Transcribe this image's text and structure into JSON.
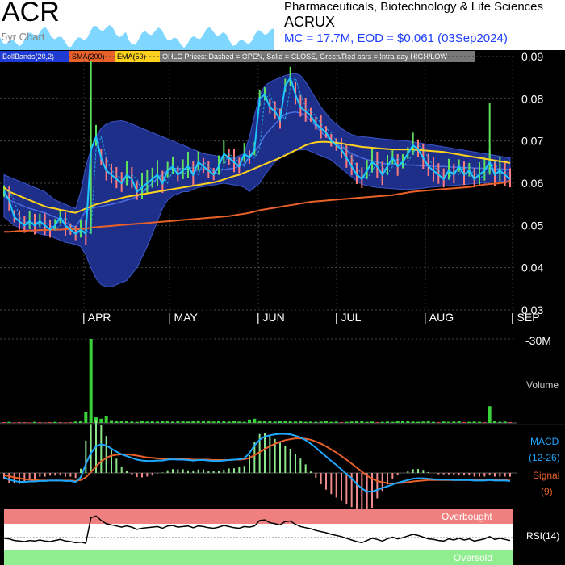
{
  "header": {
    "ticker": "ACR",
    "chart_label": "5yr Chart",
    "sector": "Pharmaceuticals, Biotechnology & Life Sciences",
    "company": "ACRUX",
    "mc_line": "MC = 17.7M, EOD = $0.061 (03Sep2024)"
  },
  "legend": {
    "bollbands": "BollBands(20,2)",
    "sma": "SMA(200)",
    "ema": "EMA(50)",
    "ohlc": "OHLC Prices: Dashed = OPEN, Solid = CLOSE, Green/Red bars = Intra-day HIGH/LOW"
  },
  "colors": {
    "price": "#1ec8ff",
    "bollinger_fill": "#1e2f8a",
    "sma": "#e8602a",
    "ema": "#ffd21e",
    "volume": "#3ad23a",
    "macd": "#1ea8ff",
    "signal": "#e8602a",
    "overbought": "#f08080",
    "oversold": "#90ee90"
  },
  "chart_data": {
    "type": "line",
    "price_axis": {
      "ylim": [
        0.03,
        0.09
      ],
      "ticks": [
        "0.09",
        "0.08",
        "0.07",
        "0.06",
        "0.05",
        "0.04",
        "0.03"
      ]
    },
    "x_labels": [
      "| APR",
      "| MAY",
      "| JUN",
      "| JUL",
      "| AUG",
      "| SEP"
    ],
    "series": [
      {
        "name": "Close",
        "values": [
          0.058,
          0.056,
          0.052,
          0.051,
          0.05,
          0.051,
          0.05,
          0.051,
          0.05,
          0.049,
          0.05,
          0.052,
          0.05,
          0.049,
          0.048,
          0.049,
          0.048,
          0.068,
          0.071,
          0.066,
          0.063,
          0.062,
          0.061,
          0.06,
          0.062,
          0.061,
          0.058,
          0.059,
          0.06,
          0.061,
          0.062,
          0.06,
          0.063,
          0.064,
          0.062,
          0.063,
          0.064,
          0.062,
          0.065,
          0.064,
          0.063,
          0.062,
          0.064,
          0.067,
          0.066,
          0.065,
          0.064,
          0.067,
          0.066,
          0.068,
          0.08,
          0.081,
          0.078,
          0.077,
          0.075,
          0.083,
          0.085,
          0.081,
          0.078,
          0.077,
          0.076,
          0.074,
          0.073,
          0.072,
          0.07,
          0.069,
          0.068,
          0.066,
          0.064,
          0.062,
          0.061,
          0.063,
          0.065,
          0.064,
          0.062,
          0.064,
          0.066,
          0.064,
          0.065,
          0.067,
          0.069,
          0.068,
          0.066,
          0.064,
          0.063,
          0.062,
          0.061,
          0.063,
          0.062,
          0.064,
          0.062,
          0.063,
          0.061,
          0.062,
          0.063,
          0.065,
          0.062,
          0.063,
          0.062,
          0.061
        ]
      },
      {
        "name": "BB Upper",
        "values": [
          0.062,
          0.0615,
          0.061,
          0.0605,
          0.06,
          0.0595,
          0.059,
          0.0585,
          0.058,
          0.057,
          0.056,
          0.0555,
          0.055,
          0.0545,
          0.054,
          0.058,
          0.064,
          0.068,
          0.071,
          0.073,
          0.074,
          0.0745,
          0.0747,
          0.0748,
          0.0745,
          0.074,
          0.0735,
          0.073,
          0.0725,
          0.072,
          0.0715,
          0.071,
          0.0705,
          0.07,
          0.0695,
          0.069,
          0.0685,
          0.068,
          0.0675,
          0.067,
          0.0668,
          0.0666,
          0.0664,
          0.0662,
          0.066,
          0.066,
          0.0665,
          0.067,
          0.071,
          0.076,
          0.081,
          0.083,
          0.084,
          0.0845,
          0.085,
          0.0855,
          0.0858,
          0.086,
          0.0855,
          0.084,
          0.082,
          0.08,
          0.078,
          0.0765,
          0.075,
          0.074,
          0.073,
          0.0722,
          0.0715,
          0.0712,
          0.071,
          0.0709,
          0.0708,
          0.0706,
          0.0705,
          0.0704,
          0.0703,
          0.0702,
          0.0701,
          0.07,
          0.0698,
          0.0696,
          0.0694,
          0.0692,
          0.069,
          0.0688,
          0.0686,
          0.0684,
          0.0682,
          0.068,
          0.0678,
          0.0676,
          0.0674,
          0.0672,
          0.067,
          0.0668,
          0.0666,
          0.0664,
          0.0662,
          0.066
        ]
      },
      {
        "name": "BB Lower",
        "values": [
          0.052,
          0.051,
          0.05,
          0.0495,
          0.049,
          0.0487,
          0.0484,
          0.048,
          0.0477,
          0.0475,
          0.047,
          0.0465,
          0.046,
          0.0458,
          0.0455,
          0.045,
          0.043,
          0.04,
          0.0375,
          0.036,
          0.0355,
          0.0355,
          0.036,
          0.0365,
          0.037,
          0.0385,
          0.04,
          0.0425,
          0.045,
          0.048,
          0.051,
          0.054,
          0.056,
          0.057,
          0.0575,
          0.058,
          0.058,
          0.0585,
          0.059,
          0.0592,
          0.0594,
          0.0596,
          0.0598,
          0.06,
          0.0598,
          0.0596,
          0.0594,
          0.059,
          0.058,
          0.059,
          0.06,
          0.062,
          0.0635,
          0.065,
          0.066,
          0.067,
          0.0675,
          0.0678,
          0.0679,
          0.068,
          0.0675,
          0.067,
          0.0665,
          0.066,
          0.0655,
          0.0645,
          0.0635,
          0.0625,
          0.0615,
          0.0605,
          0.0598,
          0.0594,
          0.0592,
          0.059,
          0.0589,
          0.0588,
          0.0587,
          0.0586,
          0.0585,
          0.0585,
          0.0586,
          0.0587,
          0.0588,
          0.059,
          0.0591,
          0.0592,
          0.0593,
          0.0594,
          0.0595,
          0.0596,
          0.0597,
          0.0598,
          0.0599,
          0.06,
          0.0601,
          0.0602,
          0.0603,
          0.0604,
          0.0605,
          0.0606
        ]
      },
      {
        "name": "BB Middle",
        "values": [
          0.057,
          0.056,
          0.0555,
          0.055,
          0.0545,
          0.054,
          0.0537,
          0.0533,
          0.053,
          0.0525,
          0.052,
          0.0515,
          0.0507,
          0.05,
          0.0497,
          0.0515,
          0.0535,
          0.054,
          0.0543,
          0.0545,
          0.0548,
          0.055,
          0.0553,
          0.0556,
          0.056,
          0.0563,
          0.0568,
          0.0577,
          0.0587,
          0.06,
          0.0612,
          0.0622,
          0.063,
          0.0635,
          0.0635,
          0.0635,
          0.0632,
          0.063,
          0.0632,
          0.0633,
          0.0632,
          0.0631,
          0.0631,
          0.0632,
          0.0634,
          0.0636,
          0.064,
          0.0645,
          0.066,
          0.0675,
          0.069,
          0.0713,
          0.0727,
          0.074,
          0.0752,
          0.0763,
          0.0767,
          0.0769,
          0.0766,
          0.076,
          0.0748,
          0.0735,
          0.0722,
          0.071,
          0.0703,
          0.0694,
          0.0686,
          0.0678,
          0.067,
          0.0665,
          0.066,
          0.0656,
          0.0653,
          0.065,
          0.0647,
          0.0645,
          0.0644,
          0.0643,
          0.0643,
          0.0643,
          0.0643,
          0.0642,
          0.0641,
          0.0641,
          0.064,
          0.064,
          0.064,
          0.0639,
          0.0638,
          0.0638,
          0.0637,
          0.0637,
          0.0636,
          0.0636,
          0.0635,
          0.0635,
          0.0634,
          0.0634,
          0.0633,
          0.0633
        ]
      },
      {
        "name": "SMA",
        "values": [
          0.0485,
          0.0485,
          0.0486,
          0.0487,
          0.0487,
          0.0488,
          0.0488,
          0.0489,
          0.0489,
          0.049,
          0.049,
          0.049,
          0.0491,
          0.0491,
          0.0491,
          0.0491,
          0.0492,
          0.0495,
          0.0496,
          0.0497,
          0.0498,
          0.0499,
          0.05,
          0.0501,
          0.0502,
          0.0503,
          0.0504,
          0.0505,
          0.0506,
          0.0507,
          0.0508,
          0.0509,
          0.051,
          0.0511,
          0.0512,
          0.0513,
          0.0514,
          0.0515,
          0.0516,
          0.0517,
          0.0518,
          0.0519,
          0.052,
          0.0521,
          0.0522,
          0.0524,
          0.0526,
          0.0528,
          0.053,
          0.0533,
          0.0536,
          0.0538,
          0.054,
          0.0542,
          0.0544,
          0.0546,
          0.0548,
          0.055,
          0.0552,
          0.0554,
          0.0556,
          0.0557,
          0.0558,
          0.0559,
          0.056,
          0.0561,
          0.0562,
          0.0563,
          0.0564,
          0.0565,
          0.0566,
          0.0567,
          0.0568,
          0.0569,
          0.057,
          0.0571,
          0.0572,
          0.0574,
          0.0576,
          0.0578,
          0.058,
          0.0581,
          0.0582,
          0.0583,
          0.0584,
          0.0585,
          0.0586,
          0.0587,
          0.0588,
          0.0589,
          0.059,
          0.0591,
          0.0593,
          0.0595,
          0.0597,
          0.0598,
          0.0599,
          0.06,
          0.0602,
          0.0605
        ]
      },
      {
        "name": "EMA",
        "values": [
          0.059,
          0.058,
          0.0575,
          0.057,
          0.0565,
          0.056,
          0.0555,
          0.055,
          0.0545,
          0.0542,
          0.054,
          0.0537,
          0.0535,
          0.0532,
          0.053,
          0.0535,
          0.054,
          0.0545,
          0.055,
          0.0553,
          0.0556,
          0.056,
          0.0562,
          0.0565,
          0.0568,
          0.057,
          0.0572,
          0.0574,
          0.0576,
          0.0578,
          0.058,
          0.0582,
          0.0584,
          0.0586,
          0.0588,
          0.059,
          0.0592,
          0.0594,
          0.0596,
          0.0598,
          0.06,
          0.0602,
          0.0605,
          0.0609,
          0.0613,
          0.0617,
          0.062,
          0.0625,
          0.063,
          0.0635,
          0.064,
          0.0645,
          0.065,
          0.0655,
          0.066,
          0.0666,
          0.0672,
          0.0678,
          0.0684,
          0.069,
          0.0694,
          0.0697,
          0.0698,
          0.0698,
          0.0697,
          0.0696,
          0.0694,
          0.0692,
          0.069,
          0.0688,
          0.0686,
          0.0685,
          0.0684,
          0.0683,
          0.0682,
          0.0681,
          0.068,
          0.068,
          0.068,
          0.068,
          0.068,
          0.0679,
          0.0678,
          0.0677,
          0.0676,
          0.0675,
          0.0674,
          0.0672,
          0.067,
          0.0668,
          0.0666,
          0.0664,
          0.0662,
          0.066,
          0.0658,
          0.0656,
          0.0654,
          0.0652,
          0.065,
          0.0648
        ]
      }
    ],
    "volume": {
      "label": "Volume",
      "ticks": [
        "30M"
      ],
      "ylim": [
        0,
        30
      ],
      "values": [
        0.3,
        0.4,
        0.2,
        0.3,
        0.3,
        0.2,
        0.4,
        0.3,
        0.2,
        0.3,
        0.4,
        0.3,
        0.2,
        0.3,
        0.5,
        0.6,
        4,
        30,
        2,
        1.5,
        2.5,
        1,
        0.8,
        0.6,
        0.7,
        0.5,
        0.4,
        0.6,
        0.5,
        0.7,
        0.5,
        0.6,
        0.8,
        0.5,
        0.7,
        0.6,
        0.5,
        0.8,
        0.9,
        0.6,
        0.7,
        0.5,
        0.6,
        0.7,
        0.5,
        0.6,
        0.5,
        0.4,
        1.2,
        1.5,
        0.9,
        0.8,
        0.6,
        0.5,
        0.7,
        0.8,
        0.6,
        0.5,
        0.6,
        0.4,
        0.5,
        0.4,
        0.5,
        0.6,
        0.4,
        0.5,
        0.3,
        0.4,
        0.5,
        0.6,
        0.7,
        0.4,
        0.5,
        0.3,
        0.4,
        0.5,
        0.4,
        0.6,
        0.8,
        0.7,
        0.5,
        0.4,
        0.5,
        0.6,
        0.4,
        0.3,
        0.5,
        0.4,
        0.5,
        0.6,
        0.3,
        0.4,
        0.5,
        0.4,
        0.3,
        6,
        0.6,
        0.4,
        0.5,
        0.3
      ]
    },
    "macd": {
      "label": "MACD",
      "params": "(12-26)",
      "signal_label": "Signal",
      "signal_params": "(9)",
      "ylim": [
        -1,
        1
      ],
      "macd_values": [
        -0.1,
        -0.15,
        -0.18,
        -0.2,
        -0.2,
        -0.19,
        -0.19,
        -0.18,
        -0.18,
        -0.17,
        -0.17,
        -0.17,
        -0.18,
        -0.18,
        -0.2,
        -0.1,
        0.2,
        0.45,
        0.6,
        0.65,
        0.62,
        0.55,
        0.48,
        0.42,
        0.38,
        0.34,
        0.3,
        0.28,
        0.27,
        0.27,
        0.28,
        0.28,
        0.3,
        0.31,
        0.3,
        0.3,
        0.29,
        0.28,
        0.29,
        0.29,
        0.28,
        0.27,
        0.27,
        0.28,
        0.29,
        0.3,
        0.31,
        0.33,
        0.45,
        0.62,
        0.75,
        0.82,
        0.85,
        0.87,
        0.88,
        0.88,
        0.87,
        0.84,
        0.8,
        0.74,
        0.66,
        0.57,
        0.47,
        0.37,
        0.27,
        0.18,
        0.08,
        -0.02,
        -0.12,
        -0.25,
        -0.35,
        -0.42,
        -0.42,
        -0.38,
        -0.34,
        -0.3,
        -0.26,
        -0.22,
        -0.19,
        -0.16,
        -0.13,
        -0.12,
        -0.12,
        -0.13,
        -0.14,
        -0.15,
        -0.15,
        -0.15,
        -0.16,
        -0.16,
        -0.16,
        -0.16,
        -0.17,
        -0.17,
        -0.17,
        -0.16,
        -0.17,
        -0.17,
        -0.17,
        -0.18
      ],
      "signal_values": [
        -0.05,
        -0.07,
        -0.1,
        -0.12,
        -0.14,
        -0.15,
        -0.16,
        -0.17,
        -0.17,
        -0.17,
        -0.17,
        -0.17,
        -0.17,
        -0.17,
        -0.18,
        -0.16,
        -0.1,
        0.02,
        0.15,
        0.26,
        0.34,
        0.39,
        0.41,
        0.42,
        0.42,
        0.41,
        0.39,
        0.37,
        0.35,
        0.34,
        0.33,
        0.32,
        0.32,
        0.32,
        0.31,
        0.31,
        0.31,
        0.3,
        0.3,
        0.3,
        0.3,
        0.29,
        0.29,
        0.29,
        0.29,
        0.3,
        0.3,
        0.31,
        0.34,
        0.4,
        0.47,
        0.54,
        0.6,
        0.66,
        0.7,
        0.74,
        0.76,
        0.78,
        0.78,
        0.77,
        0.75,
        0.71,
        0.66,
        0.6,
        0.53,
        0.46,
        0.38,
        0.3,
        0.21,
        0.12,
        0.03,
        -0.06,
        -0.13,
        -0.18,
        -0.21,
        -0.23,
        -0.24,
        -0.23,
        -0.22,
        -0.21,
        -0.19,
        -0.18,
        -0.17,
        -0.16,
        -0.16,
        -0.16,
        -0.16,
        -0.16,
        -0.16,
        -0.16,
        -0.16,
        -0.16,
        -0.16,
        -0.16,
        -0.16,
        -0.16,
        -0.16,
        -0.16,
        -0.16,
        -0.17
      ]
    },
    "rsi": {
      "label": "RSI(14)",
      "overbought_label": "Overbought",
      "oversold_label": "Oversold",
      "ylim": [
        0,
        100
      ],
      "values": [
        48,
        47,
        44,
        43,
        42,
        44,
        43,
        45,
        43,
        42,
        44,
        46,
        43,
        42,
        40,
        41,
        39,
        85,
        88,
        80,
        74,
        72,
        70,
        68,
        70,
        68,
        64,
        66,
        67,
        68,
        69,
        66,
        70,
        71,
        68,
        69,
        70,
        67,
        70,
        69,
        67,
        66,
        68,
        71,
        69,
        67,
        66,
        69,
        68,
        70,
        80,
        81,
        76,
        74,
        72,
        78,
        79,
        73,
        69,
        67,
        65,
        62,
        60,
        58,
        55,
        53,
        51,
        48,
        45,
        42,
        40,
        44,
        48,
        46,
        43,
        47,
        50,
        47,
        49,
        52,
        55,
        53,
        50,
        47,
        46,
        44,
        43,
        47,
        45,
        48,
        45,
        47,
        43,
        45,
        47,
        51,
        46,
        48,
        46,
        44
      ]
    }
  }
}
